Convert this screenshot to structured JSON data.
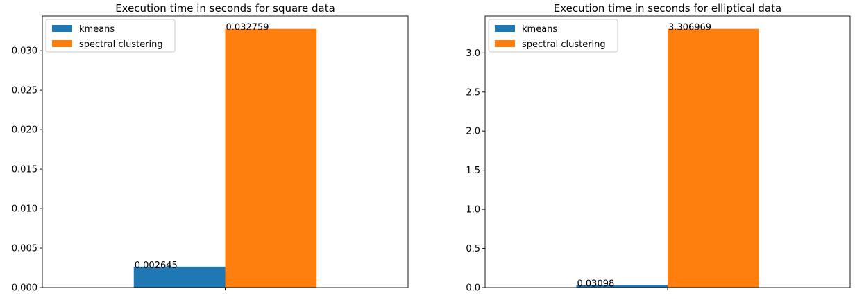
{
  "chart_data": [
    {
      "type": "bar",
      "title": "Execution time in seconds for square data",
      "categories": [
        ""
      ],
      "series": [
        {
          "name": "kmeans",
          "values": [
            0.002645
          ],
          "label": "0.002645",
          "color": "#1f77b4"
        },
        {
          "name": "spectral clustering",
          "values": [
            0.032759
          ],
          "label": "0.032759",
          "color": "#ff7f0e"
        }
      ],
      "ylim": [
        0,
        0.0344
      ],
      "yticks": [
        0.0,
        0.005,
        0.01,
        0.015,
        0.02,
        0.025,
        0.03
      ],
      "ytick_labels": [
        "0.000",
        "0.005",
        "0.010",
        "0.015",
        "0.020",
        "0.025",
        "0.030"
      ],
      "legend": "top-left",
      "grid": false
    },
    {
      "type": "bar",
      "title": "Execution time in seconds for elliptical data",
      "categories": [
        ""
      ],
      "series": [
        {
          "name": "kmeans",
          "values": [
            0.03098
          ],
          "label": "0.03098",
          "color": "#1f77b4"
        },
        {
          "name": "spectral clustering",
          "values": [
            3.306969
          ],
          "label": "3.306969",
          "color": "#ff7f0e"
        }
      ],
      "ylim": [
        0,
        3.4723
      ],
      "yticks": [
        0.0,
        0.5,
        1.0,
        1.5,
        2.0,
        2.5,
        3.0
      ],
      "ytick_labels": [
        "0.0",
        "0.5",
        "1.0",
        "1.5",
        "2.0",
        "2.5",
        "3.0"
      ],
      "legend": "top-left",
      "grid": false
    }
  ]
}
